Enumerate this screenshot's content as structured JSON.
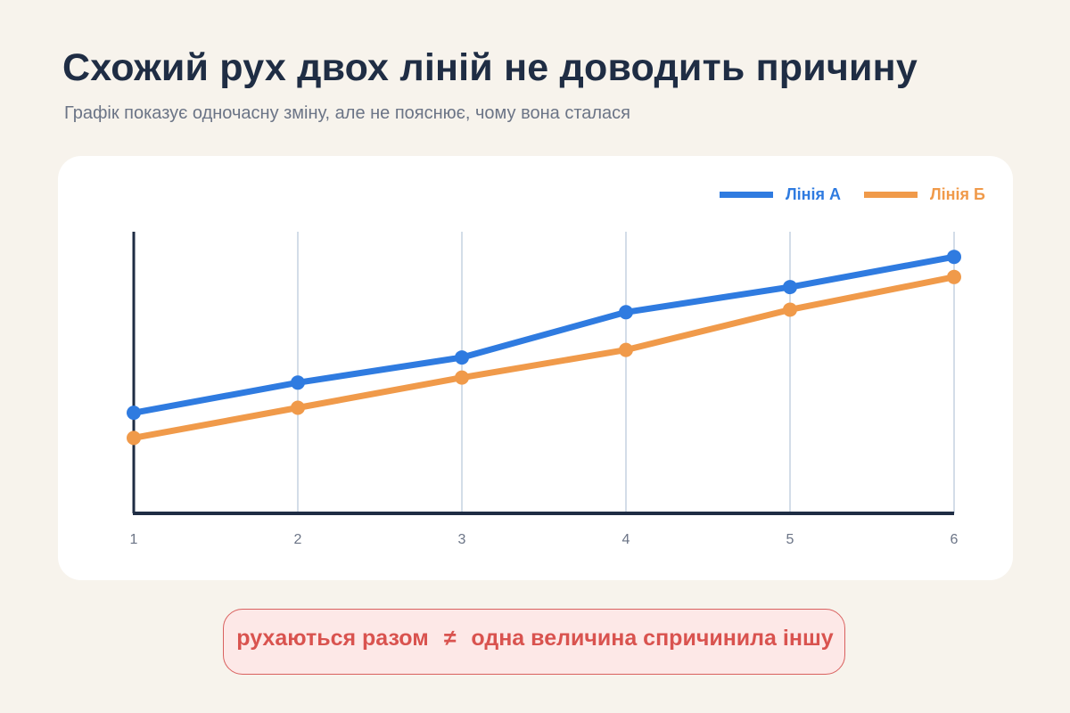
{
  "header": {
    "title": "Схожий рух двох ліній не доводить причину",
    "subtitle": "Графік показує одночасну зміну, але не пояснює, чому вона сталася"
  },
  "legend": {
    "series_a": "Лінія А",
    "series_b": "Лінія Б"
  },
  "banner": {
    "left": "рухаються разом",
    "symbol": "≠",
    "right": "одна величина спричинила іншу"
  },
  "colors": {
    "series_a": "#2f7be0",
    "series_b": "#f09a4a",
    "axis": "#1f2d44",
    "grid": "#d3dde8",
    "banner_text": "#d9534f"
  },
  "chart_data": {
    "type": "line",
    "x": [
      1,
      2,
      3,
      4,
      5,
      6
    ],
    "series": [
      {
        "name": "Лінія А",
        "values": [
          2.0,
          2.6,
          3.1,
          4.0,
          4.5,
          5.1
        ]
      },
      {
        "name": "Лінія Б",
        "values": [
          1.5,
          2.1,
          2.7,
          3.25,
          4.05,
          4.7
        ]
      }
    ],
    "ylim": [
      0,
      5.6
    ],
    "title": "",
    "xlabel": "",
    "ylabel": "",
    "grid": "vertical",
    "legend_position": "top-right"
  }
}
